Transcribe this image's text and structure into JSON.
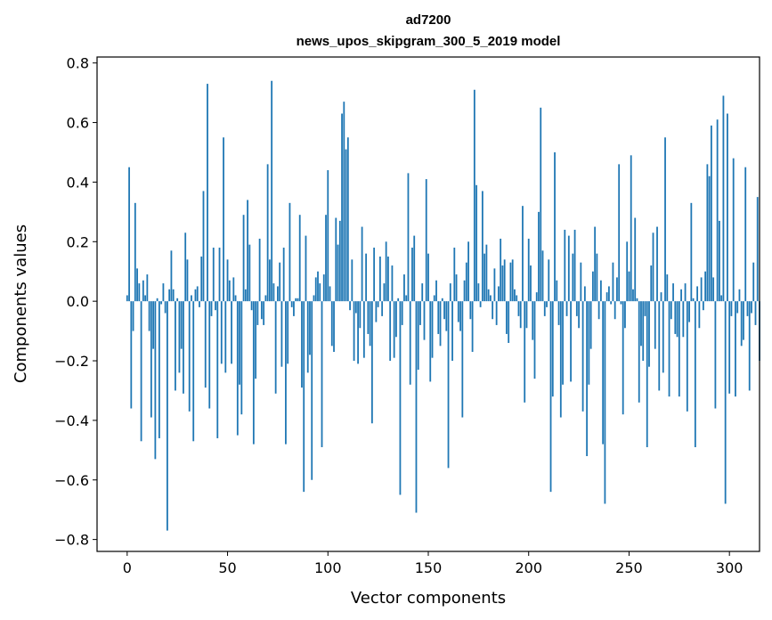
{
  "chart_data": {
    "type": "bar",
    "title": [
      "ad7200",
      "news_upos_skipgram_300_5_2019 model"
    ],
    "xlabel": "Vector components",
    "ylabel": "Components values",
    "xlim": [
      -15,
      315
    ],
    "ylim": [
      -0.84,
      0.82
    ],
    "xticks": [
      0,
      50,
      100,
      150,
      200,
      250,
      300
    ],
    "xtick_labels": [
      "0",
      "50",
      "100",
      "150",
      "200",
      "250",
      "300"
    ],
    "yticks": [
      -0.8,
      -0.6,
      -0.4,
      -0.2,
      0.0,
      0.2,
      0.4,
      0.6,
      0.8
    ],
    "ytick_labels": [
      "−0.8",
      "−0.6",
      "−0.4",
      "−0.2",
      "0.0",
      "0.2",
      "0.4",
      "0.6",
      "0.8"
    ],
    "grid": false,
    "color": "#1f77b4",
    "series": [
      {
        "name": "components",
        "x_start": 0,
        "values": [
          0.02,
          0.45,
          -0.36,
          -0.1,
          0.33,
          0.11,
          0.06,
          -0.47,
          0.07,
          0.02,
          0.09,
          -0.1,
          -0.39,
          -0.16,
          -0.53,
          0.01,
          -0.46,
          -0.01,
          0.06,
          -0.04,
          -0.77,
          0.04,
          0.17,
          0.04,
          -0.3,
          0.01,
          -0.24,
          -0.16,
          -0.31,
          0.23,
          0.14,
          -0.37,
          0.02,
          -0.47,
          0.04,
          0.05,
          -0.02,
          0.15,
          0.37,
          -0.29,
          0.73,
          -0.36,
          -0.05,
          0.18,
          -0.03,
          -0.46,
          0.18,
          -0.21,
          0.55,
          -0.24,
          0.14,
          0.07,
          -0.21,
          0.08,
          0.02,
          -0.45,
          -0.28,
          -0.38,
          0.29,
          0.04,
          0.34,
          0.19,
          -0.03,
          -0.48,
          -0.26,
          -0.08,
          0.21,
          -0.06,
          -0.08,
          0.02,
          0.46,
          0.14,
          0.74,
          0.06,
          -0.31,
          0.05,
          0.13,
          -0.22,
          0.18,
          -0.48,
          -0.21,
          0.33,
          -0.02,
          -0.05,
          0.01,
          0.01,
          0.29,
          -0.29,
          -0.64,
          0.22,
          -0.24,
          -0.18,
          -0.6,
          0.02,
          0.08,
          0.1,
          0.06,
          -0.49,
          0.09,
          0.29,
          0.44,
          0.05,
          -0.15,
          -0.17,
          0.28,
          0.19,
          0.27,
          0.63,
          0.67,
          0.51,
          0.55,
          -0.03,
          0.14,
          -0.2,
          -0.04,
          -0.21,
          -0.09,
          0.25,
          -0.19,
          0.16,
          -0.11,
          -0.15,
          -0.41,
          0.18,
          -0.07,
          -0.02,
          0.15,
          -0.05,
          0.06,
          0.2,
          0.15,
          -0.2,
          0.12,
          -0.19,
          -0.12,
          0.01,
          -0.65,
          -0.08,
          0.09,
          0.02,
          0.43,
          -0.28,
          0.18,
          0.22,
          -0.71,
          -0.23,
          -0.08,
          0.06,
          -0.13,
          0.41,
          0.16,
          -0.27,
          -0.19,
          0.02,
          0.07,
          -0.11,
          -0.15,
          0.01,
          -0.06,
          -0.1,
          -0.56,
          0.06,
          -0.2,
          0.18,
          0.09,
          -0.07,
          -0.1,
          -0.39,
          0.07,
          0.13,
          0.2,
          -0.06,
          -0.17,
          0.71,
          0.39,
          0.06,
          -0.02,
          0.37,
          0.16,
          0.19,
          0.04,
          0.02,
          -0.06,
          0.11,
          -0.08,
          0.05,
          0.21,
          0.12,
          0.14,
          -0.11,
          -0.14,
          0.13,
          0.14,
          0.04,
          0.02,
          -0.05,
          -0.09,
          0.32,
          -0.34,
          -0.09,
          0.21,
          0.12,
          -0.13,
          -0.26,
          0.03,
          0.3,
          0.65,
          0.17,
          -0.05,
          -0.02,
          0.14,
          -0.64,
          -0.32,
          0.5,
          0.07,
          -0.08,
          -0.39,
          -0.28,
          0.24,
          -0.05,
          0.22,
          -0.27,
          0.16,
          0.24,
          -0.05,
          -0.09,
          0.13,
          -0.37,
          0.05,
          -0.52,
          -0.28,
          -0.16,
          0.1,
          0.25,
          0.16,
          -0.06,
          0.07,
          -0.48,
          -0.68,
          0.03,
          0.05,
          -0.01,
          0.13,
          -0.06,
          0.08,
          0.46,
          -0.01,
          -0.38,
          -0.09,
          0.2,
          0.1,
          0.49,
          0.04,
          0.28,
          0.01,
          -0.34,
          -0.15,
          -0.2,
          -0.05,
          -0.49,
          -0.22,
          0.12,
          0.23,
          -0.16,
          0.25,
          -0.3,
          0.03,
          -0.24,
          0.55,
          0.09,
          -0.32,
          -0.06,
          0.06,
          -0.11,
          -0.12,
          -0.32,
          0.04,
          -0.12,
          0.06,
          -0.37,
          -0.07,
          0.33,
          0.01,
          -0.49,
          0.05,
          -0.09,
          0.08,
          -0.03,
          0.1,
          0.46,
          0.42,
          0.59,
          0.08,
          -0.36,
          0.61,
          0.27,
          0.02,
          0.69,
          -0.68,
          0.63,
          -0.31,
          -0.05,
          0.48,
          -0.32,
          -0.04,
          0.04,
          -0.15,
          -0.13,
          0.45,
          -0.05,
          -0.3,
          -0.04,
          0.13,
          -0.08,
          0.35,
          -0.2
        ]
      }
    ]
  }
}
